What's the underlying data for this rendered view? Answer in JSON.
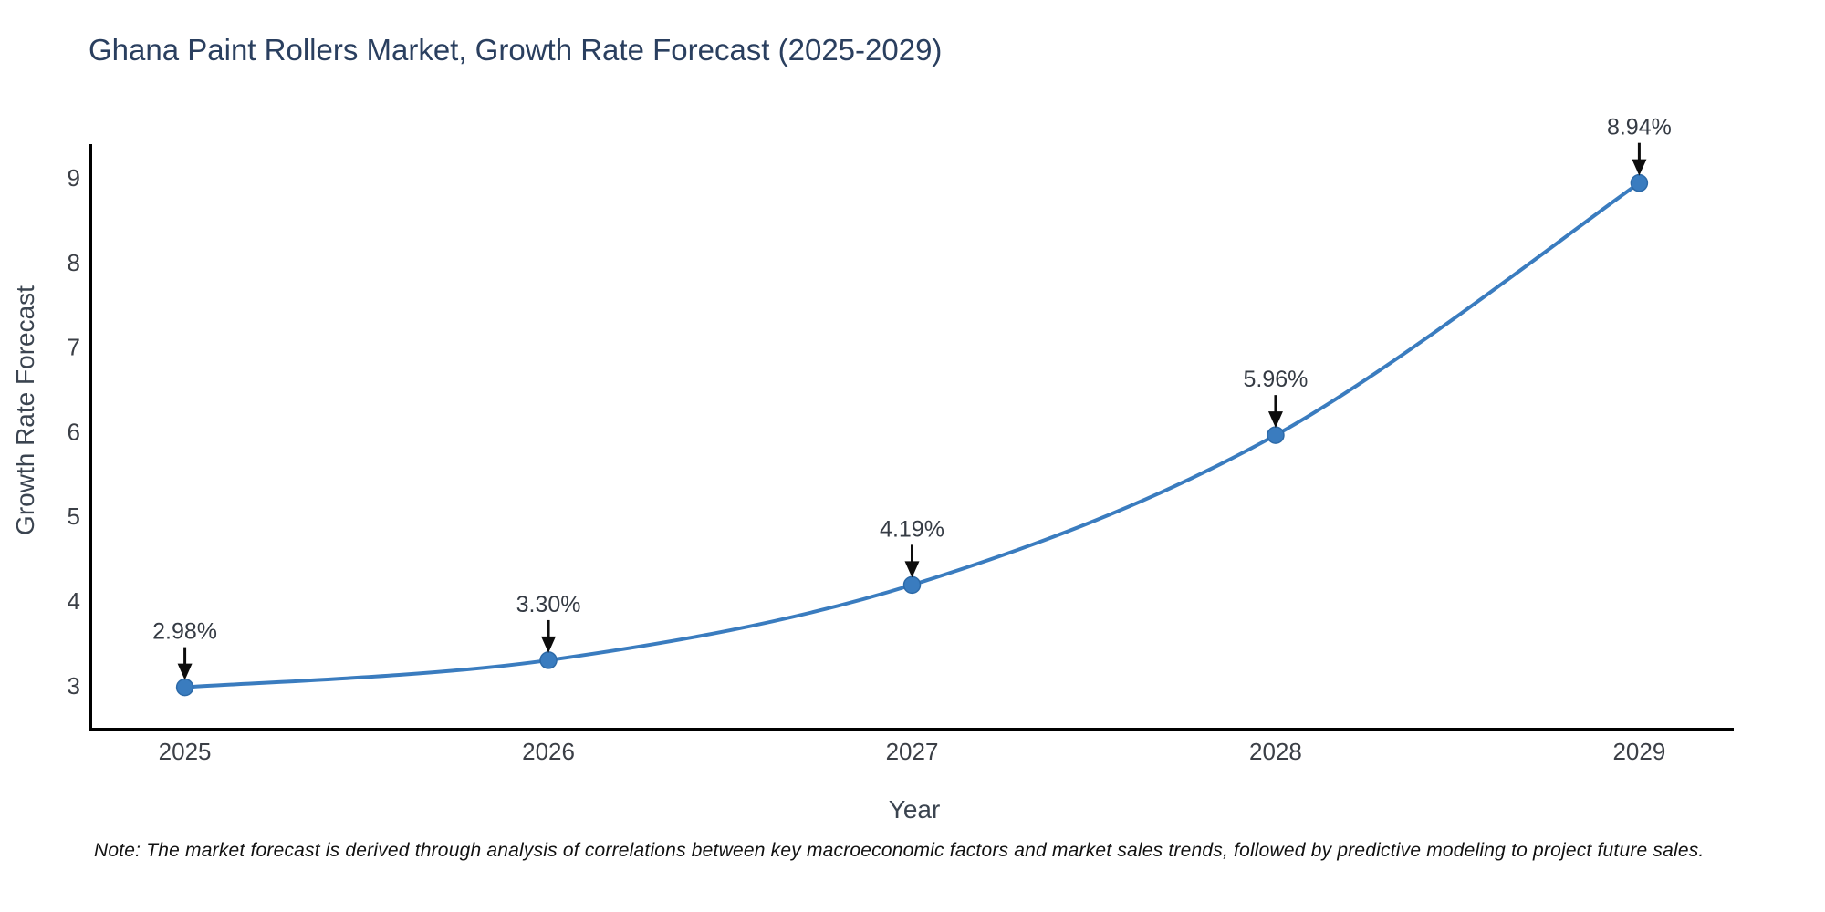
{
  "note": {
    "text": "Note: The market forecast is derived through analysis of correlations between key macroeconomic factors and market sales trends, followed by predictive modeling to project future sales."
  },
  "chart_data": {
    "type": "line",
    "title": "Ghana Paint Rollers Market, Growth Rate Forecast (2025-2029)",
    "xlabel": "Year",
    "ylabel": "Growth Rate Forecast",
    "x": [
      2025,
      2026,
      2027,
      2028,
      2029
    ],
    "y": [
      2.98,
      3.3,
      4.19,
      5.96,
      8.94
    ],
    "point_labels": [
      "2.98%",
      "3.30%",
      "4.19%",
      "5.96%",
      "8.94%"
    ],
    "xticks": [
      2025,
      2026,
      2027,
      2028,
      2029
    ],
    "yticks": [
      3,
      4,
      5,
      6,
      7,
      8,
      9
    ],
    "xlim": [
      2024.74,
      2029.26
    ],
    "ylim": [
      2.48,
      9.4
    ],
    "grid": false,
    "legend_position": "none",
    "line_color": "#3a7cbf",
    "marker_color": "#3a7cbf",
    "marker_edge_color": "#2d6aa8",
    "axis_color": "#000000",
    "tick_color": "#3b3f46",
    "title_color": "#2a3f5f",
    "annotation_color": "#353b44",
    "arrow_color": "#0d0d0d"
  }
}
